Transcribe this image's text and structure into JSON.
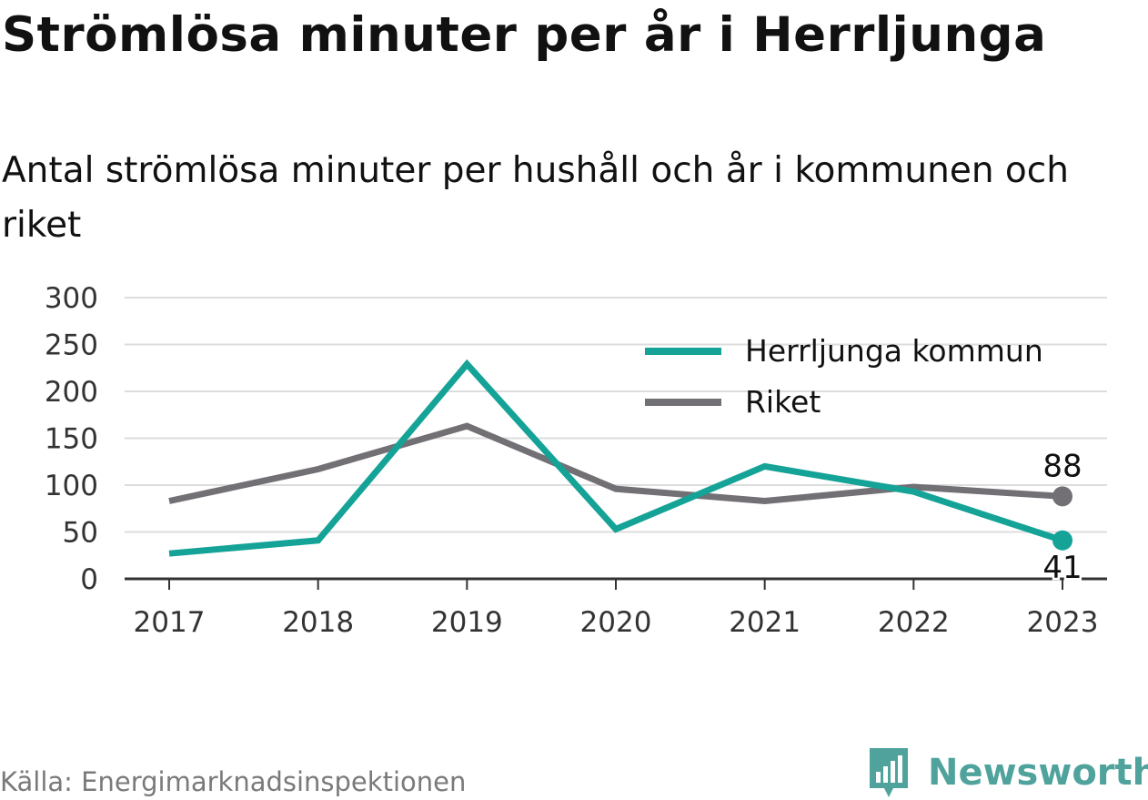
{
  "title": "Strömlösa minuter per år i Herrljunga",
  "subtitle": "Antal strömlösa minuter per hushåll och år i kommunen och riket",
  "source": "Källa: Energimarknadsinspektionen",
  "brand": {
    "name": "Newsworthy",
    "icon": "newsworthy-logo-icon",
    "color": "#4fa39c"
  },
  "chart_data": {
    "type": "line",
    "x": [
      "2017",
      "2018",
      "2019",
      "2020",
      "2021",
      "2022",
      "2023"
    ],
    "ylim": [
      0,
      300
    ],
    "yticks": [
      "0",
      "50",
      "100",
      "150",
      "200",
      "250",
      "300"
    ],
    "grid": true,
    "legend_position": "top-right",
    "series": [
      {
        "name": "Herrljunga kommun",
        "color": "#14a396",
        "values": [
          27,
          41,
          229,
          53,
          120,
          93,
          41
        ],
        "end_label": "41"
      },
      {
        "name": "Riket",
        "color": "#727075",
        "values": [
          83,
          117,
          163,
          96,
          83,
          98,
          88
        ],
        "end_label": "88"
      }
    ]
  }
}
